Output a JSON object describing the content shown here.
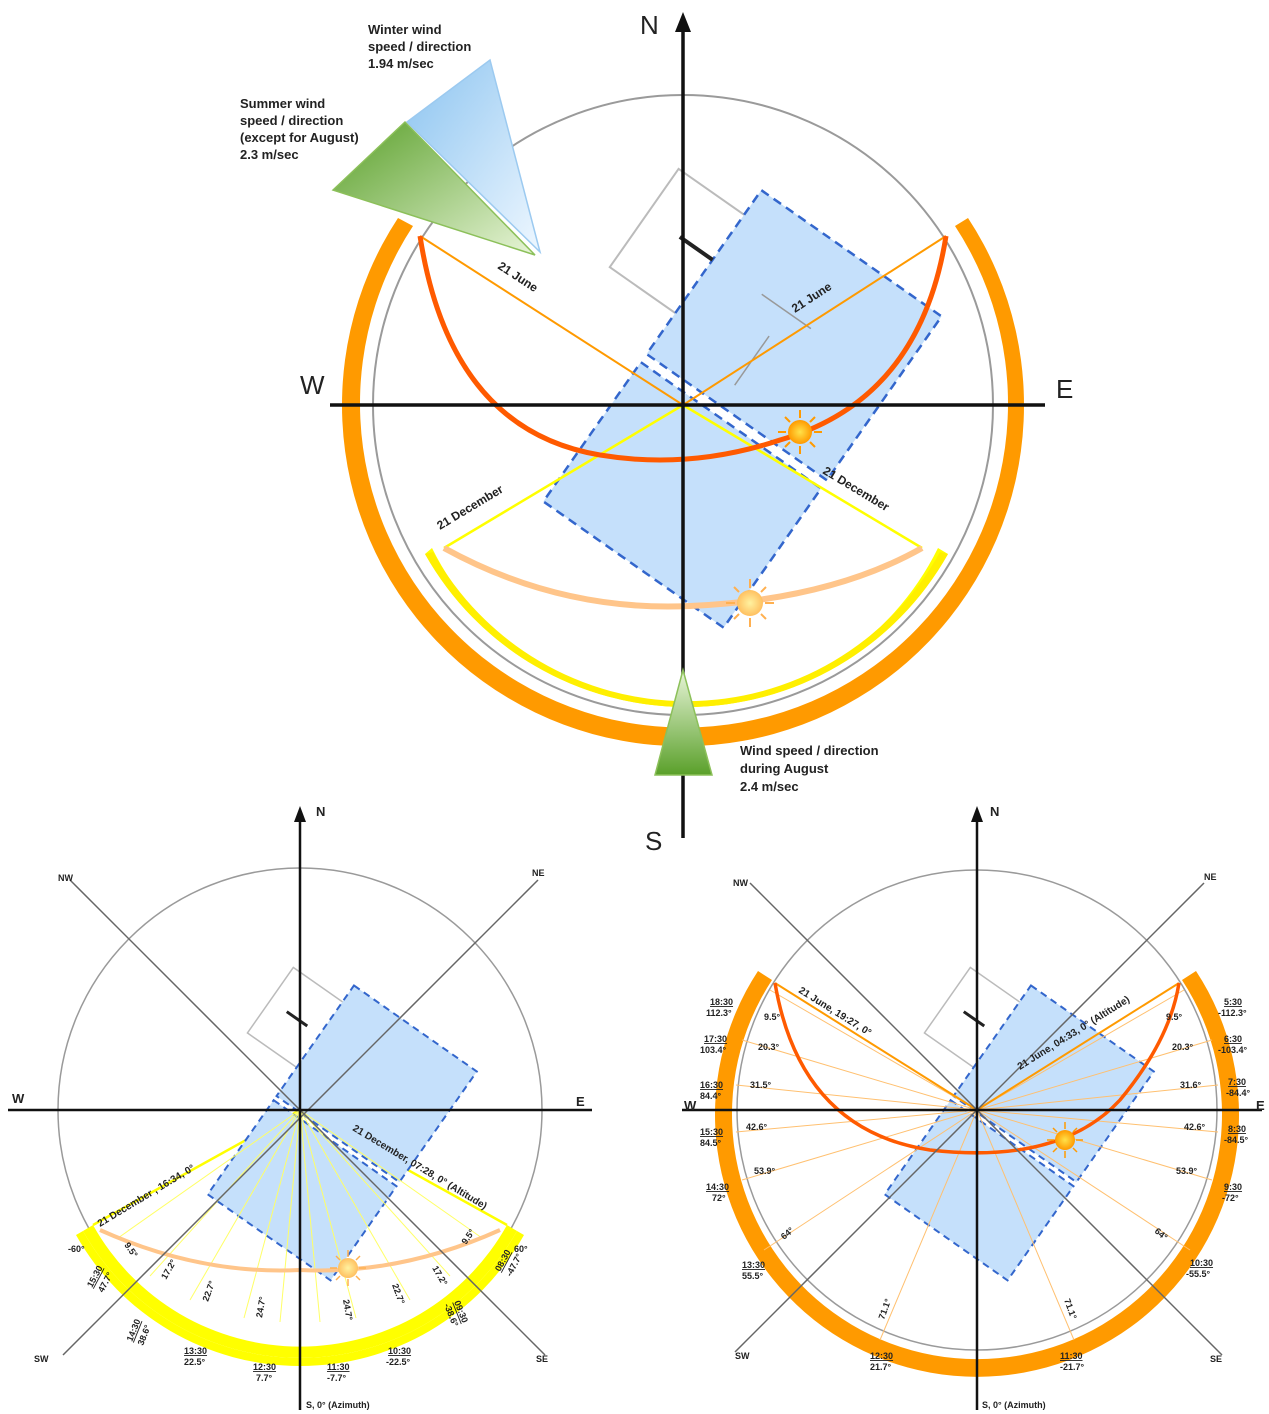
{
  "main": {
    "N": "N",
    "S": "S",
    "E": "E",
    "W": "W",
    "winter_wind": [
      "Winter wind",
      "speed / direction",
      "1.94 m/sec"
    ],
    "summer_wind": [
      "Summer wind",
      "speed / direction",
      "(except for August)",
      "2.3 m/sec"
    ],
    "august_wind": [
      "Wind speed / direction",
      "during August",
      "2.4 m/sec"
    ],
    "june_left": "21 June",
    "june_right": "21 June",
    "dec_left": "21 December",
    "dec_right": "21 December"
  },
  "winter": {
    "N": "N",
    "E": "E",
    "W": "W",
    "NW": "NW",
    "NE": "NE",
    "SW": "SW",
    "SE": "SE",
    "south_label": "S, 0° (Azimuth)",
    "sunset_label": "21 December , 16:34, 0°",
    "sunrise_label": "21 December, 07:28, 0° (Altitude)",
    "left_az": "-60°",
    "right_az": "60°",
    "altitudes": [
      "9.5°",
      "17.2°",
      "22.7°",
      "24.7°",
      "24.7°",
      "22.7°",
      "17.2°",
      "9.5°"
    ],
    "times_left": [
      {
        "time": "15:30",
        "az": "47.7°"
      },
      {
        "time": "14:30",
        "az": "38.6°"
      },
      {
        "time": "13:30",
        "az": "22.5°"
      },
      {
        "time": "12:30",
        "az": "7.7°"
      }
    ],
    "times_right": [
      {
        "time": "11:30",
        "az": "-7.7°"
      },
      {
        "time": "10:30",
        "az": "-22.5°"
      },
      {
        "time": "09:30",
        "az": "-38.6°"
      },
      {
        "time": "08:30",
        "az": "-47.7°"
      }
    ]
  },
  "summer": {
    "N": "N",
    "E": "E",
    "W": "W",
    "NW": "NW",
    "NE": "NE",
    "SW": "SW",
    "SE": "SE",
    "south_label": "S, 0° (Azimuth)",
    "sunset_label": "21 June,  19:27, 0°",
    "sunrise_label": "21 June, 04:33, 0° (Altitude)",
    "alt_left": [
      "9.5°",
      "20.3°",
      "31.5°",
      "42.6°",
      "53.9°",
      "64°",
      "71.1°"
    ],
    "alt_right": [
      "9.5°",
      "20.3°",
      "31.6°",
      "42.6°",
      "53.9°",
      "64°",
      "71.1°"
    ],
    "times_left": [
      {
        "time": "18:30",
        "az": "112.3°"
      },
      {
        "time": "17:30",
        "az": "103.4°"
      },
      {
        "time": "16:30",
        "az": "84.4°"
      },
      {
        "time": "15:30",
        "az": "84.5°"
      },
      {
        "time": "14:30",
        "az": "72°"
      },
      {
        "time": "13:30",
        "az": "55.5°"
      },
      {
        "time": "12:30",
        "az": "21.7°"
      }
    ],
    "times_right": [
      {
        "time": "5:30",
        "az": "-112.3°"
      },
      {
        "time": "6:30",
        "az": "-103.4°"
      },
      {
        "time": "7:30",
        "az": "-84.4°"
      },
      {
        "time": "8:30",
        "az": "-84.5°"
      },
      {
        "time": "9:30",
        "az": "-72°"
      },
      {
        "time": "10:30",
        "az": "-55.5°"
      },
      {
        "time": "11:30",
        "az": "-21.7°"
      }
    ]
  },
  "colors": {
    "summer": "#ff9a00",
    "summer_path": "#ff5a00",
    "winter": "#ffff00",
    "winter_path": "#ffc58a",
    "building": "#c5e0fb",
    "building_stroke": "#3366cc",
    "wind_winter": "#a8d4f5",
    "wind_summer": "#7ab83a"
  }
}
